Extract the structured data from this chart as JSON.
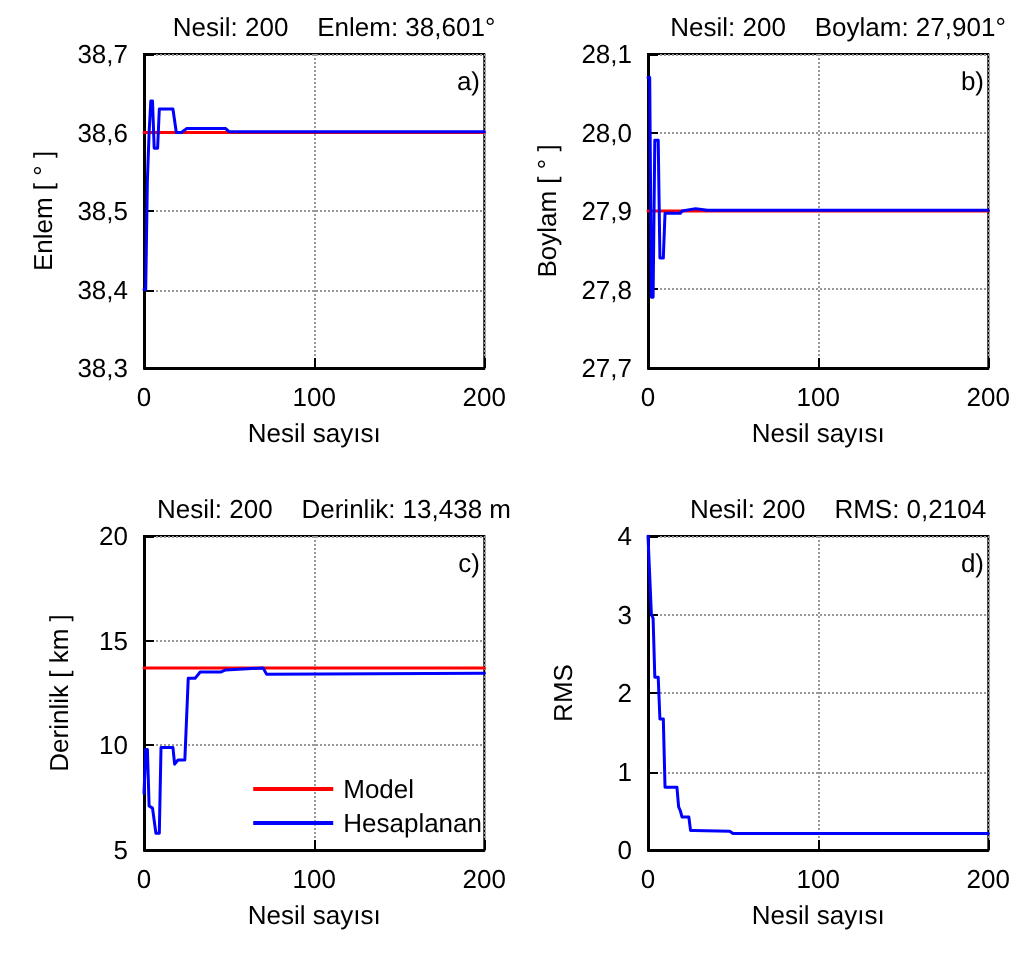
{
  "chart_data": [
    {
      "type": "line",
      "title": "Nesil: 200    Enlem: 38,601°",
      "xlabel": "Nesil sayısı",
      "ylabel": "Enlem [ ° ]",
      "annotations": [
        "a)"
      ],
      "xlim": [
        0,
        200
      ],
      "xticks": [
        0,
        100,
        200
      ],
      "ylim": [
        38.3,
        38.7
      ],
      "yticks": [
        {
          "value": 38.3,
          "label": "38,3"
        },
        {
          "value": 38.4,
          "label": "38,4"
        },
        {
          "value": 38.5,
          "label": "38,5"
        },
        {
          "value": 38.6,
          "label": "38,6"
        },
        {
          "value": 38.7,
          "label": "38,7"
        }
      ],
      "grid": true,
      "legend": false,
      "series": [
        {
          "color": "#ff0000",
          "x": [
            0,
            200
          ],
          "values": [
            38.6,
            38.6
          ]
        },
        {
          "color": "#0000ff",
          "x": [
            0,
            1,
            2,
            3,
            4,
            5,
            6,
            8,
            9,
            17,
            19,
            22,
            25,
            48,
            50,
            200
          ],
          "values": [
            38.4,
            38.4,
            38.54,
            38.6,
            38.64,
            38.64,
            38.58,
            38.58,
            38.63,
            38.63,
            38.6,
            38.6,
            38.605,
            38.605,
            38.601,
            38.601
          ]
        }
      ]
    },
    {
      "type": "line",
      "title": "Nesil: 200    Boylam: 27,901°",
      "xlabel": "Nesil sayısı",
      "ylabel": "Boylam [ ° ]",
      "annotations": [
        "b)"
      ],
      "xlim": [
        0,
        200
      ],
      "xticks": [
        0,
        100,
        200
      ],
      "ylim": [
        27.7,
        28.1
      ],
      "yticks": [
        {
          "value": 27.7,
          "label": "27,7"
        },
        {
          "value": 27.8,
          "label": "27,8"
        },
        {
          "value": 27.9,
          "label": "27,9"
        },
        {
          "value": 28.0,
          "label": "28,0"
        },
        {
          "value": 28.1,
          "label": "28,1"
        }
      ],
      "grid": true,
      "legend": false,
      "series": [
        {
          "color": "#ff0000",
          "x": [
            0,
            200
          ],
          "values": [
            27.9,
            27.9
          ]
        },
        {
          "color": "#0000ff",
          "x": [
            0,
            1,
            2,
            3,
            4,
            6,
            7,
            9,
            10,
            19,
            20,
            28,
            35,
            200
          ],
          "values": [
            28.07,
            28.07,
            27.79,
            27.79,
            27.99,
            27.99,
            27.84,
            27.84,
            27.897,
            27.897,
            27.9,
            27.903,
            27.901,
            27.901
          ]
        }
      ]
    },
    {
      "type": "line",
      "title": "Nesil: 200    Derinlik: 13,438 m",
      "xlabel": "Nesil sayısı",
      "ylabel": "Derinlik [ km ]",
      "annotations": [
        "c)"
      ],
      "xlim": [
        0,
        200
      ],
      "xticks": [
        0,
        100,
        200
      ],
      "ylim": [
        5,
        20
      ],
      "yticks": [
        5,
        10,
        15,
        20
      ],
      "grid": true,
      "legend": "bottom",
      "series": [
        {
          "name": "Model",
          "color": "#ff0000",
          "x": [
            0,
            200
          ],
          "values": [
            13.7,
            13.7
          ]
        },
        {
          "name": "Hesaplanan",
          "color": "#0000ff",
          "x": [
            0,
            1,
            2,
            3,
            5,
            7,
            9,
            10,
            17,
            18,
            20,
            24,
            26,
            30,
            33,
            45,
            48,
            70,
            72,
            200
          ],
          "values": [
            7.7,
            9.8,
            9.8,
            7.1,
            7.0,
            5.8,
            5.8,
            9.9,
            9.9,
            9.1,
            9.3,
            9.3,
            13.2,
            13.2,
            13.5,
            13.5,
            13.6,
            13.7,
            13.4,
            13.44
          ]
        }
      ]
    },
    {
      "type": "line",
      "title": "Nesil: 200    RMS: 0,2104",
      "xlabel": "Nesil sayısı",
      "ylabel": "RMS",
      "annotations": [
        "d)"
      ],
      "xlim": [
        0,
        200
      ],
      "xticks": [
        0,
        100,
        200
      ],
      "ylim": [
        0,
        4
      ],
      "yticks": [
        0,
        1,
        2,
        3,
        4
      ],
      "grid": true,
      "legend": false,
      "series": [
        {
          "color": "#0000ff",
          "x": [
            0,
            2,
            3,
            4,
            6,
            7,
            9,
            10,
            17,
            18,
            19,
            20,
            24,
            25,
            27,
            48,
            50,
            200
          ],
          "values": [
            4.0,
            3.0,
            2.95,
            2.2,
            2.2,
            1.67,
            1.67,
            0.8,
            0.8,
            0.55,
            0.5,
            0.42,
            0.42,
            0.25,
            0.25,
            0.24,
            0.21,
            0.21
          ]
        }
      ]
    }
  ]
}
